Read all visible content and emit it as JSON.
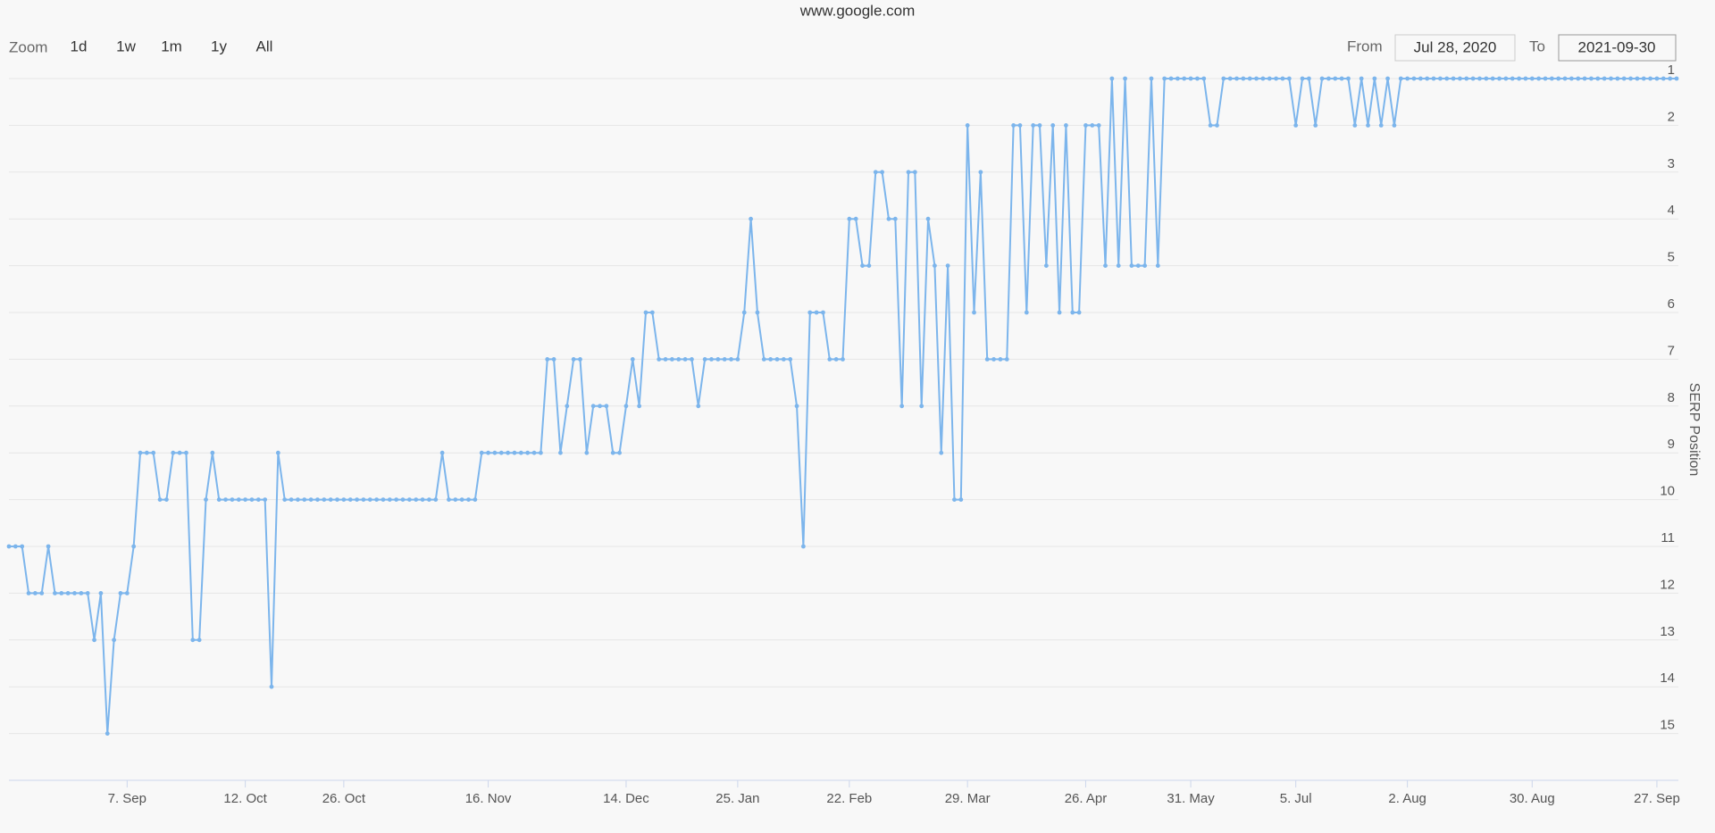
{
  "range_selector": {
    "zoom_label": "Zoom",
    "buttons": [
      "1d",
      "1w",
      "1m",
      "1y",
      "All"
    ],
    "from_label": "From",
    "from": "Jul 28, 2020",
    "to_label": "To",
    "to": "2021-09-30"
  },
  "chart_data": {
    "type": "line",
    "title": "www.google.com",
    "y_axis_label": "SERP Position",
    "color": "#7cb5ec",
    "categories": [
      null,
      null,
      null,
      null,
      null,
      null,
      null,
      null,
      null,
      null,
      null,
      null,
      null,
      null,
      null,
      null,
      null,
      null,
      "7. Sep",
      null,
      null,
      null,
      null,
      null,
      null,
      null,
      null,
      null,
      null,
      null,
      null,
      null,
      null,
      null,
      null,
      null,
      "12. Oct",
      null,
      null,
      null,
      null,
      null,
      null,
      null,
      null,
      null,
      null,
      null,
      null,
      null,
      null,
      "26. Oct",
      null,
      null,
      null,
      null,
      null,
      null,
      null,
      null,
      null,
      null,
      null,
      null,
      null,
      null,
      null,
      null,
      null,
      null,
      null,
      null,
      null,
      "16. Nov",
      null,
      null,
      null,
      null,
      null,
      null,
      null,
      null,
      null,
      null,
      null,
      null,
      null,
      null,
      null,
      null,
      null,
      null,
      null,
      null,
      "14. Dec",
      null,
      null,
      null,
      null,
      null,
      null,
      null,
      null,
      null,
      null,
      null,
      null,
      null,
      null,
      null,
      null,
      "25. Jan",
      null,
      null,
      null,
      null,
      null,
      null,
      null,
      null,
      null,
      null,
      null,
      null,
      null,
      null,
      null,
      null,
      "22. Feb",
      null,
      null,
      null,
      null,
      null,
      null,
      null,
      null,
      null,
      null,
      null,
      null,
      null,
      null,
      null,
      null,
      null,
      "29. Mar",
      null,
      null,
      null,
      null,
      null,
      null,
      null,
      null,
      null,
      null,
      null,
      null,
      null,
      null,
      null,
      null,
      null,
      "26. Apr",
      null,
      null,
      null,
      null,
      null,
      null,
      null,
      null,
      null,
      null,
      null,
      null,
      null,
      null,
      null,
      "31. May",
      null,
      null,
      null,
      null,
      null,
      null,
      null,
      null,
      null,
      null,
      null,
      null,
      null,
      null,
      null,
      "5. Jul",
      null,
      null,
      null,
      null,
      null,
      null,
      null,
      null,
      null,
      null,
      null,
      null,
      null,
      null,
      null,
      null,
      "2. Aug",
      null,
      null,
      null,
      null,
      null,
      null,
      null,
      null,
      null,
      null,
      null,
      null,
      null,
      null,
      null,
      null,
      null,
      null,
      "30. Aug",
      null,
      null,
      null,
      null,
      null,
      null,
      null,
      null,
      null,
      null,
      null,
      null,
      null,
      null,
      null,
      null,
      null,
      null,
      "27. Sep",
      null,
      null,
      null
    ],
    "values": [
      11,
      11,
      11,
      12,
      12,
      12,
      11,
      12,
      12,
      12,
      12,
      12,
      12,
      13,
      12,
      15,
      13,
      12,
      12,
      11,
      9,
      9,
      9,
      10,
      10,
      9,
      9,
      9,
      13,
      13,
      10,
      9,
      10,
      10,
      10,
      10,
      10,
      10,
      10,
      10,
      14,
      9,
      10,
      10,
      10,
      10,
      10,
      10,
      10,
      10,
      10,
      10,
      10,
      10,
      10,
      10,
      10,
      10,
      10,
      10,
      10,
      10,
      10,
      10,
      10,
      10,
      9,
      10,
      10,
      10,
      10,
      10,
      9,
      9,
      9,
      9,
      9,
      9,
      9,
      9,
      9,
      9,
      7,
      7,
      9,
      8,
      7,
      7,
      9,
      8,
      8,
      8,
      9,
      9,
      8,
      7,
      8,
      6,
      6,
      7,
      7,
      7,
      7,
      7,
      7,
      8,
      7,
      7,
      7,
      7,
      7,
      7,
      6,
      4,
      6,
      7,
      7,
      7,
      7,
      7,
      8,
      11,
      6,
      6,
      6,
      7,
      7,
      7,
      4,
      4,
      5,
      5,
      3,
      3,
      4,
      4,
      8,
      3,
      3,
      8,
      4,
      5,
      9,
      5,
      10,
      10,
      2,
      6,
      3,
      7,
      7,
      7,
      7,
      2,
      2,
      6,
      2,
      2,
      5,
      2,
      6,
      2,
      6,
      6,
      2,
      2,
      2,
      5,
      1,
      5,
      1,
      5,
      5,
      5,
      1,
      5,
      1,
      1,
      1,
      1,
      1,
      1,
      1,
      2,
      2,
      1,
      1,
      1,
      1,
      1,
      1,
      1,
      1,
      1,
      1,
      1,
      2,
      1,
      1,
      2,
      1,
      1,
      1,
      1,
      1,
      2,
      1,
      2,
      1,
      2,
      1,
      2,
      1,
      1,
      1,
      1,
      1,
      1,
      1,
      1,
      1,
      1,
      1,
      1,
      1,
      1,
      1,
      1,
      1,
      1,
      1,
      1,
      1,
      1,
      1,
      1,
      1,
      1,
      1,
      1,
      1,
      1,
      1,
      1,
      1,
      1,
      1,
      1,
      1,
      1,
      1,
      1,
      1,
      1,
      1
    ],
    "ylim": [
      16,
      1
    ],
    "yticks": [
      1,
      2,
      3,
      4,
      5,
      6,
      7,
      8,
      9,
      10,
      11,
      12,
      13,
      14,
      15
    ],
    "grid": true
  }
}
